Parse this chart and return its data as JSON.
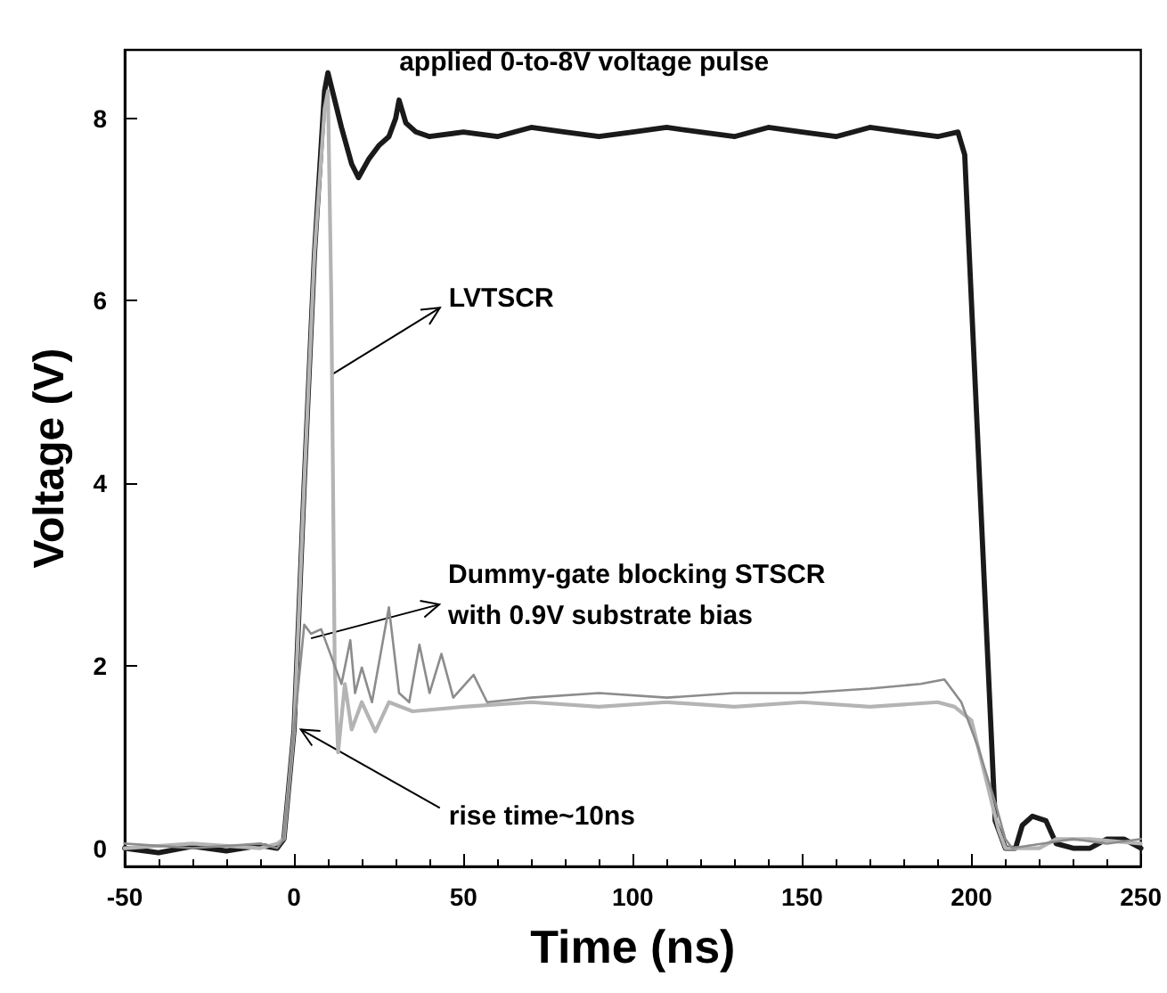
{
  "chart_data": {
    "type": "line",
    "xlabel": "Time (ns)",
    "ylabel": "Voltage (V)",
    "xlim": [
      -50,
      250
    ],
    "xticks": [
      -50,
      0,
      50,
      100,
      150,
      200,
      250
    ],
    "ylim": [
      -0.2,
      8.75
    ],
    "yticks": [
      0,
      2,
      4,
      6,
      8
    ],
    "grid": false,
    "marker": "none",
    "line_style": "solid",
    "series": [
      {
        "color": "#1a1a1a",
        "x": [
          -50,
          -40,
          -30,
          -20,
          -10,
          -5,
          -3,
          0,
          3,
          6,
          9,
          10,
          12,
          14,
          17,
          19,
          22,
          25,
          28,
          30,
          31,
          33,
          36,
          40,
          50,
          60,
          70,
          80,
          90,
          100,
          110,
          120,
          130,
          140,
          150,
          160,
          170,
          180,
          190,
          196,
          198,
          207,
          210,
          213,
          215,
          218,
          222,
          225,
          230,
          235,
          240,
          245,
          250
        ],
        "values": [
          0,
          -0.05,
          0.02,
          -0.03,
          0.03,
          0,
          0.1,
          1.3,
          4.0,
          6.5,
          8.3,
          8.5,
          8.2,
          7.9,
          7.5,
          7.35,
          7.55,
          7.7,
          7.8,
          8.0,
          8.2,
          7.95,
          7.85,
          7.8,
          7.85,
          7.8,
          7.9,
          7.85,
          7.8,
          7.85,
          7.9,
          7.85,
          7.8,
          7.9,
          7.85,
          7.8,
          7.9,
          7.85,
          7.8,
          7.85,
          7.6,
          0.3,
          0,
          0,
          0.25,
          0.35,
          0.3,
          0.05,
          0,
          0,
          0.1,
          0.1,
          0
        ]
      },
      {
        "color": "#b4b4b4",
        "x": [
          -50,
          -30,
          -10,
          -5,
          -3,
          0,
          3,
          6,
          9,
          10,
          11,
          12,
          13,
          15,
          17,
          20,
          24,
          28,
          35,
          50,
          70,
          90,
          110,
          130,
          150,
          170,
          190,
          195,
          200,
          204,
          208,
          210,
          220,
          225,
          235,
          250
        ],
        "values": [
          0,
          0.05,
          0,
          0.05,
          0.1,
          1.3,
          4.0,
          6.5,
          8.1,
          8.3,
          6,
          2,
          1.05,
          1.8,
          1.3,
          1.6,
          1.28,
          1.6,
          1.5,
          1.55,
          1.6,
          1.55,
          1.6,
          1.55,
          1.6,
          1.55,
          1.6,
          1.55,
          1.4,
          0.8,
          0.2,
          0,
          0,
          0.1,
          0.1,
          0.05
        ]
      },
      {
        "color": "#8c8c8c",
        "x": [
          -50,
          -30,
          -10,
          -5,
          -3,
          0,
          3,
          5,
          8,
          12,
          14,
          16.6,
          18,
          20,
          23,
          28,
          31,
          34,
          37,
          40,
          43.5,
          47,
          53,
          57,
          70,
          90,
          110,
          130,
          150,
          170,
          185,
          192,
          197,
          202,
          207,
          210,
          212,
          230,
          240,
          250
        ],
        "values": [
          0.05,
          0,
          0.05,
          0,
          0.1,
          1.3,
          2.45,
          2.35,
          2.4,
          2.0,
          1.8,
          2.28,
          1.7,
          1.98,
          1.6,
          2.64,
          1.7,
          1.6,
          2.23,
          1.7,
          2.13,
          1.65,
          1.9,
          1.6,
          1.65,
          1.7,
          1.65,
          1.7,
          1.7,
          1.75,
          1.8,
          1.85,
          1.6,
          1.1,
          0.5,
          0.1,
          0,
          0.1,
          0.05,
          0.1
        ]
      }
    ],
    "annotations": [
      {
        "text": "applied 0-to-8V voltage pulse",
        "x": 30,
        "y": 8.2
      },
      {
        "text": "LVTSCR",
        "x": 11.5,
        "y": 5.2
      },
      {
        "text": "Dummy-gate blocking STSCR\nwith 0.9V substrate bias",
        "x": 5,
        "y": 2.3
      },
      {
        "text": "rise time~10ns",
        "x": 2,
        "y": 1.3
      }
    ]
  }
}
